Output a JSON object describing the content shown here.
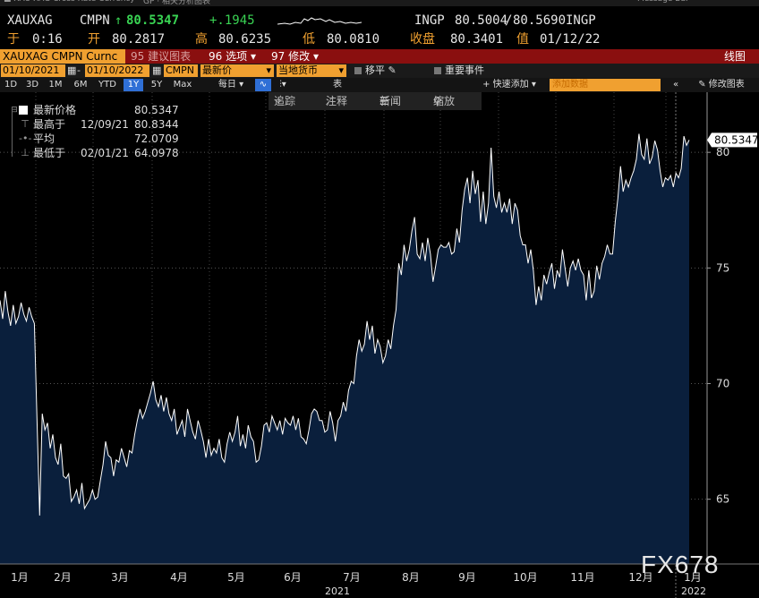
{
  "quote": {
    "ticker": "XAUXAG",
    "source": "CMPN",
    "last": "80.5347",
    "change": "+.1945",
    "bid_ask_label": "INGP",
    "bid": "80.5004",
    "ask": "80.5690",
    "ask_label": "INGP",
    "time_label": "于",
    "time": "0:16",
    "open_label": "开",
    "open": "80.2817",
    "high_label": "高",
    "high": "80.6235",
    "low_label": "低",
    "low": "80.0810",
    "close_label": "收盘",
    "close": "80.3401",
    "date_label": "值",
    "date": "01/12/22"
  },
  "menu": {
    "security": "XAUXAG CMPN Curnc",
    "item_95": "95",
    "item_95_label": "建议图表",
    "item_96": "96",
    "item_96_label": "选项",
    "item_97": "97",
    "item_97_label": "修改",
    "chart_type": "线图"
  },
  "controls": {
    "start_date": "01/10/2021",
    "end_date": "01/10/2022",
    "source": "CMPN",
    "field": "最新价",
    "currency": "当地货币",
    "pan_label": "移平",
    "events_label": "重要事件"
  },
  "toolbar": {
    "periods": [
      "1D",
      "3D",
      "1M",
      "6M",
      "YTD",
      "1Y",
      "5Y",
      "Max"
    ],
    "active_period": "1Y",
    "frequency": "每日",
    "table_label": "表",
    "quick_add": "快速添加",
    "add_data_placeholder": "添加数据",
    "edit_chart": "修改图表"
  },
  "chart_tools": {
    "track": "追踪",
    "annotate": "注释",
    "news": "新闻",
    "zoom": "缩放"
  },
  "legend": {
    "last_label": "最新价格",
    "last_value": "80.5347",
    "high_label": "最高于",
    "high_date": "12/09/21",
    "high_value": "80.8344",
    "avg_label": "平均",
    "avg_value": "72.0709",
    "low_label": "最低于",
    "low_date": "02/01/21",
    "low_value": "64.0978"
  },
  "watermark": "FX678",
  "colors": {
    "area_fill": "#0a1f3c",
    "line": "#ffffff",
    "label_bg": "#ffffff",
    "accent_orange": "#f0a030",
    "green": "#39d353",
    "menu_red": "#8a0f0f"
  },
  "chart_data": {
    "type": "area",
    "series": [
      {
        "values": [
          73.6,
          72.8,
          74.0,
          73.1,
          72.5,
          73.4,
          72.6,
          72.9,
          73.5,
          73.0,
          72.7,
          73.3,
          72.9,
          72.6,
          68.5,
          64.3,
          68.7,
          68.0,
          68.3,
          67.2,
          67.8,
          66.8,
          66.5,
          67.4,
          66.0,
          65.9,
          66.1,
          64.9,
          65.1,
          65.4,
          64.8,
          65.7,
          64.6,
          64.8,
          65.0,
          65.4,
          65.0,
          65.1,
          65.8,
          66.5,
          67.5,
          66.9,
          66.8,
          66.0,
          66.7,
          66.6,
          67.2,
          66.8,
          66.4,
          67.1,
          67.0,
          67.8,
          68.4,
          68.9,
          68.5,
          68.8,
          69.2,
          69.6,
          70.1,
          69.3,
          69.0,
          69.5,
          68.8,
          69.4,
          68.7,
          68.4,
          68.9,
          67.8,
          68.1,
          68.4,
          67.7,
          68.9,
          68.4,
          67.9,
          67.6,
          68.4,
          68.0,
          67.5,
          66.8,
          67.6,
          66.9,
          67.2,
          67.0,
          67.6,
          66.8,
          66.6,
          67.4,
          67.9,
          67.5,
          67.9,
          68.6,
          67.3,
          67.8,
          67.2,
          68.2,
          67.7,
          67.5,
          66.6,
          66.7,
          67.3,
          68.2,
          68.3,
          67.9,
          68.6,
          68.3,
          68.0,
          68.4,
          67.8,
          68.5,
          68.3,
          68.2,
          68.6,
          68.0,
          68.5,
          67.7,
          67.6,
          67.4,
          68.0,
          68.7,
          68.9,
          68.8,
          68.4,
          68.4,
          67.9,
          68.0,
          68.8,
          68.3,
          67.5,
          68.4,
          68.6,
          69.2,
          68.8,
          69.7,
          70.1,
          70.0,
          71.2,
          71.9,
          71.4,
          71.7,
          72.7,
          71.9,
          72.5,
          71.3,
          71.9,
          71.6,
          70.9,
          71.2,
          71.9,
          71.5,
          72.5,
          73.2,
          75.2,
          74.7,
          76.0,
          75.3,
          75.8,
          76.6,
          77.2,
          75.6,
          75.4,
          76.1,
          75.3,
          76.3,
          75.6,
          74.4,
          75.1,
          75.8,
          76.0,
          75.9,
          75.9,
          76.1,
          75.6,
          75.7,
          76.7,
          76.1,
          77.5,
          78.4,
          78.9,
          77.8,
          79.2,
          78.2,
          78.8,
          77.0,
          78.3,
          76.9,
          77.8,
          80.2,
          78.1,
          77.6,
          78.3,
          77.4,
          77.8,
          77.4,
          78.0,
          76.9,
          77.8,
          77.5,
          76.4,
          76.0,
          76.0,
          75.2,
          75.8,
          74.9,
          73.4,
          74.2,
          73.6,
          74.7,
          74.3,
          74.8,
          75.2,
          74.1,
          74.9,
          74.6,
          75.8,
          75.0,
          74.2,
          75.0,
          75.3,
          74.9,
          75.4,
          74.9,
          74.7,
          73.6,
          74.9,
          73.7,
          74.0,
          75.1,
          74.5,
          75.2,
          75.5,
          76.0,
          75.6,
          75.6,
          77.0,
          78.0,
          79.4,
          78.3,
          78.8,
          78.5,
          78.9,
          79.2,
          79.7,
          80.8,
          79.9,
          79.7,
          80.6,
          79.5,
          79.8,
          80.5,
          80.1,
          79.2,
          78.5,
          78.9,
          78.8,
          79.0,
          78.5,
          79.1,
          78.9,
          79.3,
          80.7,
          80.3,
          80.5347
        ]
      }
    ],
    "ylim": [
      62.2,
      82.6
    ],
    "yticks": [
      65,
      70,
      75,
      80
    ],
    "month_labels": [
      "1月",
      "2月",
      "3月",
      "4月",
      "5月",
      "6月",
      "7月",
      "8月",
      "9月",
      "10月",
      "11月",
      "12月",
      "1月"
    ],
    "year_labels": [
      "2021",
      "2022"
    ],
    "last_value_label": "80.5347",
    "grid": true
  }
}
